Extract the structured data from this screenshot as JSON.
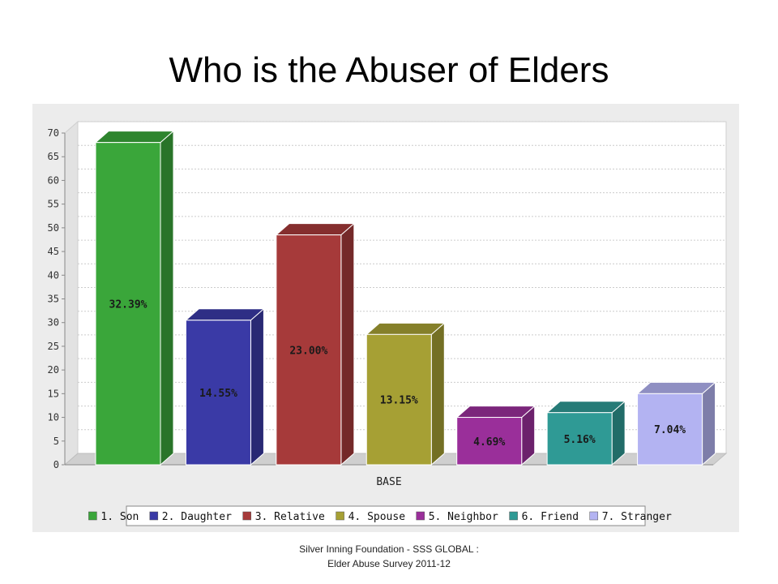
{
  "title": "Who is the Abuser of Elders",
  "footer": {
    "line1": "Silver Inning Foundation - SSS GLOBAL :",
    "line2": "Elder Abuse Survey 2011-12"
  },
  "chart_data": {
    "type": "bar",
    "xlabel": "BASE",
    "ylabel": "",
    "ylim": [
      0,
      70
    ],
    "yticks": [
      0,
      5,
      10,
      15,
      20,
      25,
      30,
      35,
      40,
      45,
      50,
      55,
      60,
      65,
      70
    ],
    "grid": true,
    "legend_position": "bottom",
    "series": [
      {
        "name": "1. Son",
        "value": 68,
        "label": "32.39%",
        "color": "#3aa63a"
      },
      {
        "name": "2. Daughter",
        "value": 30.5,
        "label": "14.55%",
        "color": "#3a3aa6"
      },
      {
        "name": "3. Relative",
        "value": 48.5,
        "label": "23.00%",
        "color": "#a63a3a"
      },
      {
        "name": "4. Spouse",
        "value": 27.5,
        "label": "13.15%",
        "color": "#a6a034"
      },
      {
        "name": "5. Neighbor",
        "value": 10,
        "label": "4.69%",
        "color": "#9a2f9a"
      },
      {
        "name": "6. Friend",
        "value": 11,
        "label": "5.16%",
        "color": "#2f9a95"
      },
      {
        "name": "7. Stranger",
        "value": 15,
        "label": "7.04%",
        "color": "#b3b3f2"
      }
    ]
  }
}
